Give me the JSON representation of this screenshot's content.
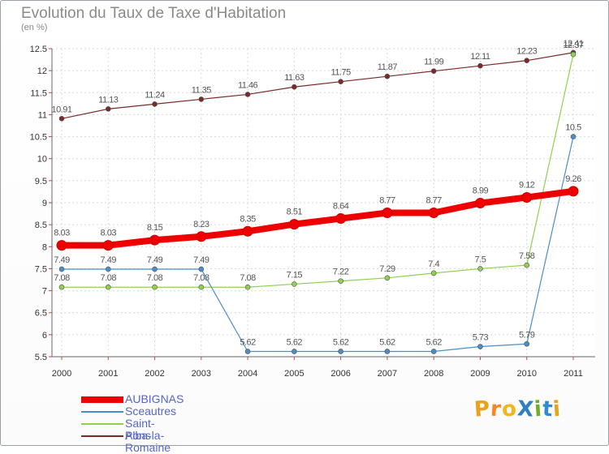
{
  "title": "Evolution du Taux de Taxe d'Habitation",
  "unit_label": "(en %)",
  "logo": {
    "text": "ProXiti",
    "letters": [
      "P",
      "r",
      "o",
      "X",
      "i",
      "t",
      "i"
    ],
    "colors": [
      "#e8a21b",
      "#f08a24",
      "#f2b51d",
      "#2f7fc1",
      "#6fae2b",
      "#2e8bd0",
      "#e8a21b"
    ]
  },
  "chart_data": {
    "type": "line",
    "x": [
      "2000",
      "2001",
      "2002",
      "2003",
      "2004",
      "2005",
      "2006",
      "2007",
      "2008",
      "2009",
      "2010",
      "2011"
    ],
    "ylim": [
      5.5,
      12.5
    ],
    "yticks": [
      "5.5",
      "6",
      "6.5",
      "7",
      "7.5",
      "8",
      "8.5",
      "9",
      "9.5",
      "10",
      "10.5",
      "11",
      "11.5",
      "12",
      "12.5"
    ],
    "grid": true,
    "legend_position": "bottom-left",
    "series": [
      {
        "name": "AUBIGNAS",
        "color": "#ee0000",
        "width": 8,
        "values": [
          8.03,
          8.03,
          8.15,
          8.23,
          8.35,
          8.51,
          8.64,
          8.77,
          8.77,
          8.99,
          9.12,
          9.26
        ],
        "labels": [
          "8.03",
          "8.03",
          "8.15",
          "8.23",
          "8.35",
          "8.51",
          "8.64",
          "8.77",
          "8.77",
          "8.99",
          "9.12",
          "9.26"
        ]
      },
      {
        "name": "Sceautres",
        "color": "#4a8ec8",
        "width": 1.2,
        "values": [
          7.49,
          7.49,
          7.49,
          7.49,
          5.62,
          5.62,
          5.62,
          5.62,
          5.62,
          5.73,
          5.79,
          10.5
        ],
        "labels": [
          "7.49",
          "7.49",
          "7.49",
          "7.49",
          "5.62",
          "5.62",
          "5.62",
          "5.62",
          "5.62",
          "5.73",
          "5.79",
          "10.5"
        ]
      },
      {
        "name": "Saint-Pons",
        "color": "#8fd14f",
        "width": 1.2,
        "values": [
          7.08,
          7.08,
          7.08,
          7.08,
          7.08,
          7.15,
          7.22,
          7.29,
          7.4,
          7.5,
          7.58,
          12.37
        ],
        "labels": [
          "7.08",
          "7.08",
          "7.08",
          "7.08",
          "7.08",
          "7.15",
          "7.22",
          "7.29",
          "7.4",
          "7.5",
          "7.58",
          "12.37"
        ]
      },
      {
        "name": "Alba-la-Romaine",
        "color": "#7a2a2a",
        "width": 1.2,
        "values": [
          10.91,
          11.13,
          11.24,
          11.35,
          11.46,
          11.63,
          11.75,
          11.87,
          11.99,
          12.11,
          12.23,
          12.41
        ],
        "labels": [
          "10.91",
          "11.13",
          "11.24",
          "11.35",
          "11.46",
          "11.63",
          "11.75",
          "11.87",
          "11.99",
          "12.11",
          "12.23",
          "12.41"
        ]
      }
    ]
  }
}
